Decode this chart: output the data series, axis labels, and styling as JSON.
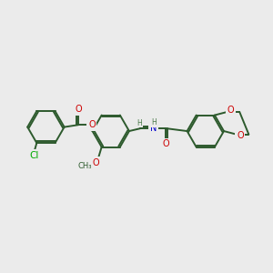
{
  "bg_color": "#ebebeb",
  "bond_color": "#2d5a2d",
  "bond_width": 1.4,
  "atom_colors": {
    "O": "#cc0000",
    "N": "#0000cc",
    "Cl": "#00aa00",
    "C": "#2d5a2d",
    "H": "#4a7a4a"
  },
  "font_size": 7.0,
  "fig_size": [
    3.0,
    3.0
  ],
  "dpi": 100,
  "xlim": [
    0,
    10
  ],
  "ylim": [
    0,
    10
  ]
}
